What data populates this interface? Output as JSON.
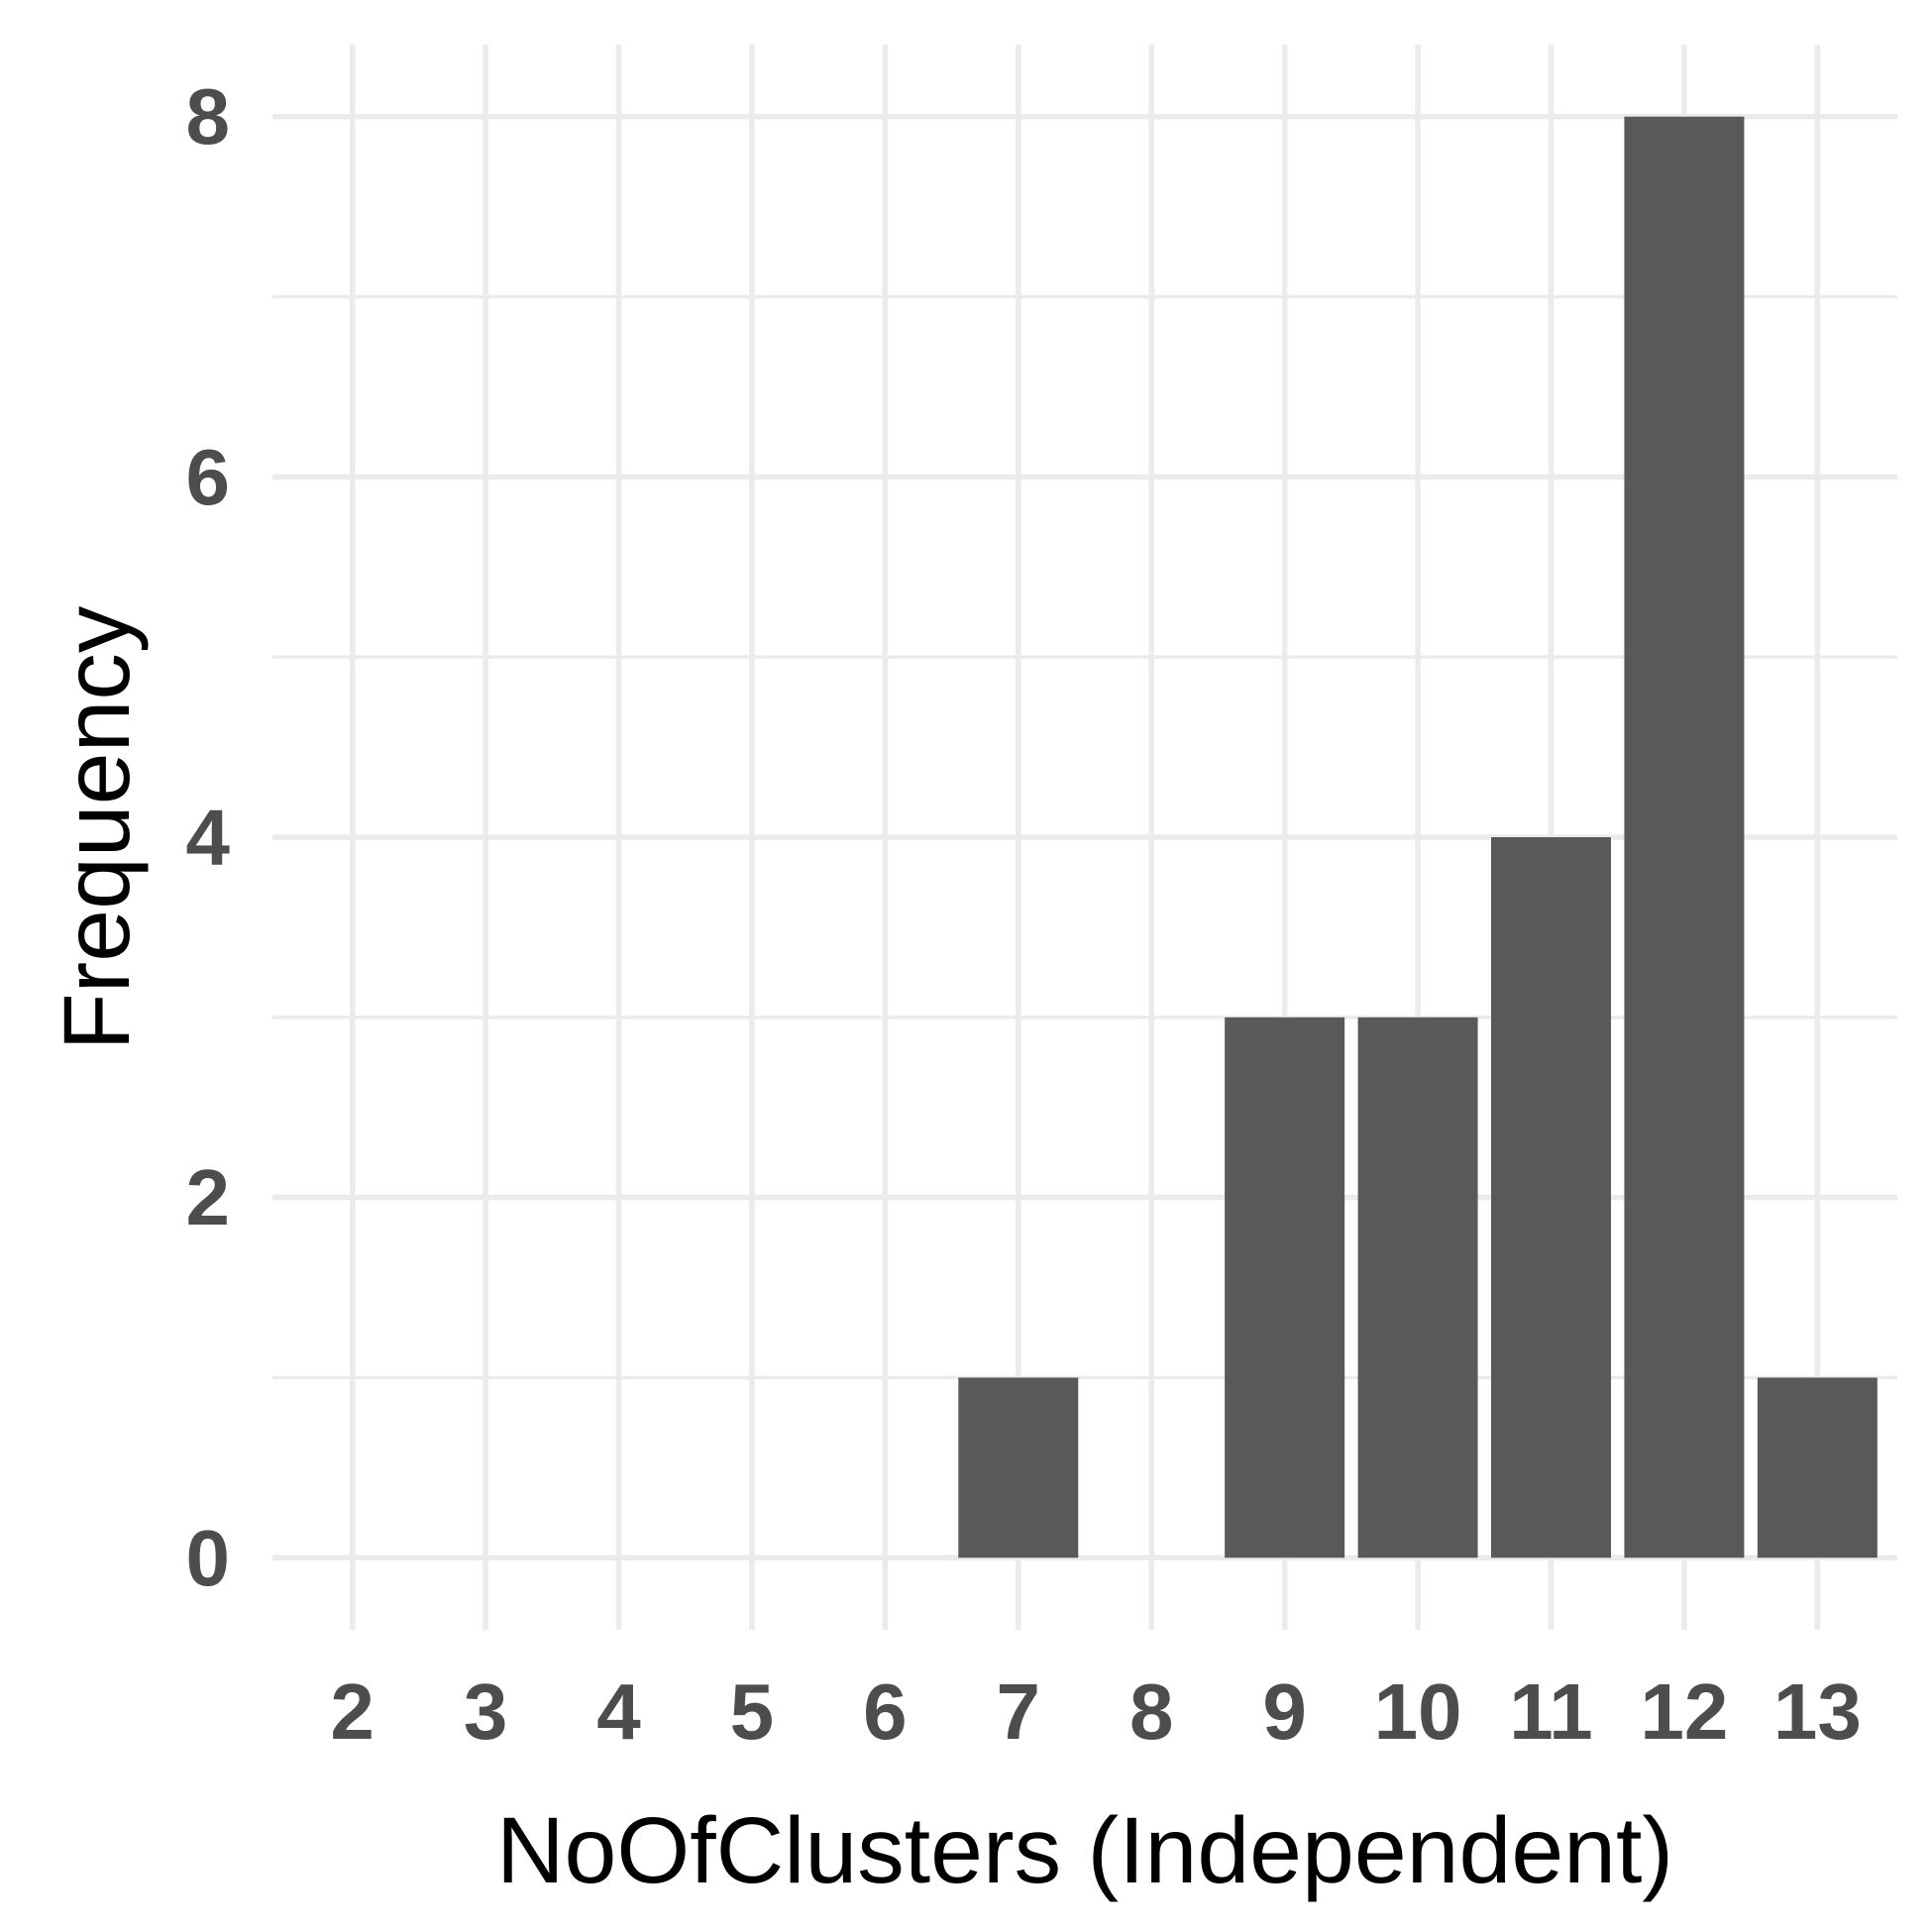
{
  "chart_data": {
    "type": "bar",
    "title": "",
    "xlabel": "NoOfClusters (Independent)",
    "ylabel": "Frequency",
    "categories": [
      "2",
      "3",
      "4",
      "5",
      "6",
      "7",
      "8",
      "9",
      "10",
      "11",
      "12",
      "13"
    ],
    "values": [
      0,
      0,
      0,
      0,
      0,
      1,
      0,
      3,
      3,
      4,
      8,
      1
    ],
    "yticks": [
      0,
      2,
      4,
      6,
      8
    ],
    "ylim": [
      -0.4,
      8.4
    ],
    "grid": true,
    "legend": "none",
    "bar_color": "#595959",
    "grid_color": "#ebebeb",
    "background": "#ffffff"
  }
}
